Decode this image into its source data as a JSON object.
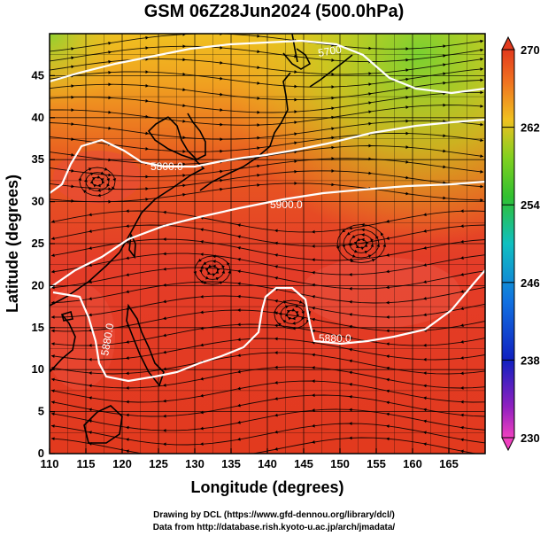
{
  "title": "GSM 06Z28Jun2024 (500.0hPa)",
  "xlabel": "Longitude (degrees)",
  "ylabel": "Latitude  (degrees)",
  "credits": {
    "line1": "Drawing by DCL (https://www.gfd-dennou.org/library/dcl/)",
    "line2": "Data from http://database.rish.kyoto-u.ac.jp/arch/jmadata/"
  },
  "chart_data": {
    "type": "heatmap",
    "x_ticks": [
      "110",
      "115",
      "120",
      "125",
      "130",
      "135",
      "140",
      "145",
      "150",
      "155",
      "160",
      "165"
    ],
    "y_ticks": [
      "0",
      "5",
      "10",
      "15",
      "20",
      "25",
      "30",
      "35",
      "40",
      "45"
    ],
    "xlim": [
      110,
      170
    ],
    "ylim": [
      0,
      50
    ],
    "colorbar": {
      "ticks": [
        "230",
        "238",
        "246",
        "254",
        "262",
        "270"
      ],
      "range": [
        230,
        270
      ]
    },
    "contours": [
      {
        "label": "5800.0",
        "value": 5800
      },
      {
        "label": "5900.0",
        "value": 5900
      },
      {
        "label": "5880.0",
        "value": 5880
      },
      {
        "label": "5880.0",
        "value": 5880
      },
      {
        "label": "5700",
        "value": 5700
      }
    ]
  }
}
